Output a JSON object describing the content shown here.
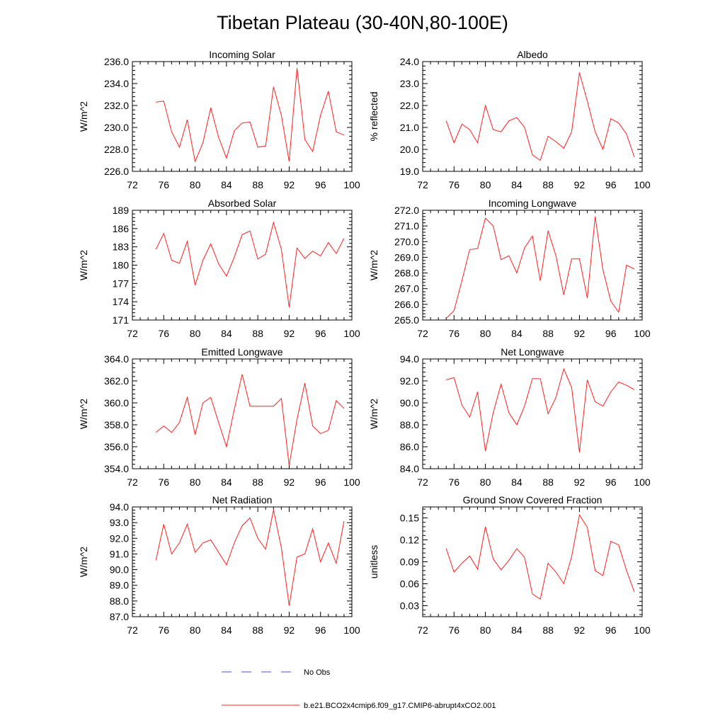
{
  "figure": {
    "title": "Tibetan Plateau (30-40N,80-100E)",
    "legend": [
      {
        "label": "No Obs",
        "color": "#4b4bcf",
        "style": "dashed"
      },
      {
        "label": "b.e21.BCO2x4cmip6.f09_g17.CMIP6-abrupt4xCO2.001",
        "color": "#ff2020",
        "style": "solid"
      }
    ]
  },
  "chart_data": [
    {
      "type": "line",
      "title": "Incoming Solar",
      "ylabel": "W/m^2",
      "xlabel": "",
      "xlim": [
        72,
        100
      ],
      "ylim": [
        226,
        236
      ],
      "x_ticks": [
        "72",
        "76",
        "80",
        "84",
        "88",
        "92",
        "96",
        "100"
      ],
      "y_ticks": [
        "226.0",
        "228.0",
        "230.0",
        "232.0",
        "234.0",
        "236.0"
      ],
      "series": [
        {
          "name": "b.e21.BCO2x4cmip6.f09_g17.CMIP6-abrupt4xCO2.001",
          "color": "#ff2020",
          "x": [
            75,
            76,
            77,
            78,
            79,
            80,
            81,
            82,
            83,
            84,
            85,
            86,
            87,
            88,
            89,
            90,
            91,
            92,
            93,
            94,
            95,
            96,
            97,
            98,
            99
          ],
          "values": [
            232.3,
            232.4,
            229.6,
            228.2,
            230.7,
            226.9,
            228.6,
            231.8,
            229.1,
            227.2,
            229.7,
            230.4,
            230.5,
            228.2,
            228.3,
            233.7,
            231.1,
            226.9,
            235.4,
            228.9,
            227.8,
            231.1,
            233.3,
            229.6,
            229.3
          ]
        }
      ]
    },
    {
      "type": "line",
      "title": "Albedo",
      "ylabel": "% reflected",
      "xlabel": "",
      "xlim": [
        72,
        100
      ],
      "ylim": [
        19,
        24
      ],
      "x_ticks": [
        "72",
        "76",
        "80",
        "84",
        "88",
        "92",
        "96",
        "100"
      ],
      "y_ticks": [
        "19.0",
        "20.0",
        "21.0",
        "22.0",
        "23.0",
        "24.0"
      ],
      "series": [
        {
          "name": "b.e21.BCO2x4cmip6.f09_g17.CMIP6-abrupt4xCO2.001",
          "color": "#ff2020",
          "x": [
            75,
            76,
            77,
            78,
            79,
            80,
            81,
            82,
            83,
            84,
            85,
            86,
            87,
            88,
            89,
            90,
            91,
            92,
            93,
            94,
            95,
            96,
            97,
            98,
            99
          ],
          "values": [
            21.3,
            20.3,
            21.15,
            20.9,
            20.3,
            22.0,
            20.9,
            20.8,
            21.3,
            21.45,
            21.0,
            19.75,
            19.5,
            20.6,
            20.35,
            20.05,
            20.8,
            23.5,
            22.2,
            20.8,
            20.0,
            21.4,
            21.2,
            20.7,
            19.65
          ]
        }
      ]
    },
    {
      "type": "line",
      "title": "Absorbed Solar",
      "ylabel": "W/m^2",
      "xlabel": "",
      "xlim": [
        72,
        100
      ],
      "ylim": [
        171,
        189
      ],
      "x_ticks": [
        "72",
        "76",
        "80",
        "84",
        "88",
        "92",
        "96",
        "100"
      ],
      "y_ticks": [
        "171",
        "174",
        "177",
        "180",
        "183",
        "186",
        "189"
      ],
      "series": [
        {
          "name": "b.e21.BCO2x4cmip6.f09_g17.CMIP6-abrupt4xCO2.001",
          "color": "#ff2020",
          "x": [
            75,
            76,
            77,
            78,
            79,
            80,
            81,
            82,
            83,
            84,
            85,
            86,
            87,
            88,
            89,
            90,
            91,
            92,
            93,
            94,
            95,
            96,
            97,
            98,
            99
          ],
          "values": [
            182.6,
            185.2,
            180.8,
            180.3,
            183.9,
            176.7,
            180.8,
            183.5,
            180.2,
            178.2,
            181.3,
            185.0,
            185.6,
            181.0,
            181.8,
            187.0,
            182.6,
            173.1,
            182.8,
            181.1,
            182.3,
            181.5,
            183.7,
            181.9,
            184.4
          ]
        }
      ]
    },
    {
      "type": "line",
      "title": "Incoming Longwave",
      "ylabel": "W/m^2",
      "xlabel": "",
      "xlim": [
        72,
        100
      ],
      "ylim": [
        265,
        272
      ],
      "x_ticks": [
        "72",
        "76",
        "80",
        "84",
        "88",
        "92",
        "96",
        "100"
      ],
      "y_ticks": [
        "265.0",
        "266.0",
        "267.0",
        "268.0",
        "269.0",
        "270.0",
        "271.0",
        "272.0"
      ],
      "series": [
        {
          "name": "b.e21.BCO2x4cmip6.f09_g17.CMIP6-abrupt4xCO2.001",
          "color": "#ff2020",
          "x": [
            75,
            76,
            77,
            78,
            79,
            80,
            81,
            82,
            83,
            84,
            85,
            86,
            87,
            88,
            89,
            90,
            91,
            92,
            93,
            94,
            95,
            96,
            97,
            98,
            99
          ],
          "values": [
            265.1,
            265.6,
            267.5,
            269.5,
            269.55,
            271.5,
            271.0,
            268.85,
            269.1,
            268.0,
            269.6,
            270.35,
            267.5,
            270.7,
            269.1,
            266.6,
            268.9,
            268.9,
            266.4,
            271.6,
            268.2,
            266.2,
            265.5,
            268.5,
            268.25
          ]
        }
      ]
    },
    {
      "type": "line",
      "title": "Emitted Longwave",
      "ylabel": "W/m^2",
      "xlabel": "",
      "xlim": [
        72,
        100
      ],
      "ylim": [
        354,
        364
      ],
      "x_ticks": [
        "72",
        "76",
        "80",
        "84",
        "88",
        "92",
        "96",
        "100"
      ],
      "y_ticks": [
        "354.0",
        "356.0",
        "358.0",
        "360.0",
        "362.0",
        "364.0"
      ],
      "series": [
        {
          "name": "b.e21.BCO2x4cmip6.f09_g17.CMIP6-abrupt4xCO2.001",
          "color": "#ff2020",
          "x": [
            75,
            76,
            77,
            78,
            79,
            80,
            81,
            82,
            83,
            84,
            85,
            86,
            87,
            88,
            89,
            90,
            91,
            92,
            93,
            94,
            95,
            96,
            97,
            98,
            99
          ],
          "values": [
            357.3,
            357.9,
            357.3,
            358.2,
            360.5,
            357.1,
            360.0,
            360.5,
            358.2,
            356.0,
            359.4,
            362.6,
            359.7,
            359.7,
            359.7,
            359.7,
            360.4,
            354.3,
            358.5,
            361.8,
            357.9,
            357.2,
            357.5,
            360.2,
            359.5
          ]
        }
      ]
    },
    {
      "type": "line",
      "title": "Net Longwave",
      "ylabel": "W/m^2",
      "xlabel": "",
      "xlim": [
        72,
        100
      ],
      "ylim": [
        84,
        94
      ],
      "x_ticks": [
        "72",
        "76",
        "80",
        "84",
        "88",
        "92",
        "96",
        "100"
      ],
      "y_ticks": [
        "84.0",
        "86.0",
        "88.0",
        "90.0",
        "92.0",
        "94.0"
      ],
      "series": [
        {
          "name": "b.e21.BCO2x4cmip6.f09_g17.CMIP6-abrupt4xCO2.001",
          "color": "#ff2020",
          "x": [
            75,
            76,
            77,
            78,
            79,
            80,
            81,
            82,
            83,
            84,
            85,
            86,
            87,
            88,
            89,
            90,
            91,
            92,
            93,
            94,
            95,
            96,
            97,
            98,
            99
          ],
          "values": [
            92.1,
            92.3,
            89.8,
            88.7,
            91.0,
            85.6,
            89.1,
            91.7,
            89.1,
            88.0,
            89.7,
            92.2,
            92.2,
            89.0,
            90.5,
            93.1,
            91.4,
            85.5,
            92.1,
            90.1,
            89.7,
            91.0,
            91.9,
            91.6,
            91.2
          ]
        }
      ]
    },
    {
      "type": "line",
      "title": "Net Radiation",
      "ylabel": "W/m^2",
      "xlabel": "",
      "xlim": [
        72,
        100
      ],
      "ylim": [
        87,
        94
      ],
      "x_ticks": [
        "72",
        "76",
        "80",
        "84",
        "88",
        "92",
        "96",
        "100"
      ],
      "y_ticks": [
        "87.0",
        "88.0",
        "89.0",
        "90.0",
        "91.0",
        "92.0",
        "93.0",
        "94.0"
      ],
      "series": [
        {
          "name": "b.e21.BCO2x4cmip6.f09_g17.CMIP6-abrupt4xCO2.001",
          "color": "#ff2020",
          "x": [
            75,
            76,
            77,
            78,
            79,
            80,
            81,
            82,
            83,
            84,
            85,
            86,
            87,
            88,
            89,
            90,
            91,
            92,
            93,
            94,
            95,
            96,
            97,
            98,
            99
          ],
          "values": [
            90.6,
            92.9,
            91.0,
            91.7,
            92.9,
            91.1,
            91.7,
            91.9,
            91.1,
            90.3,
            91.7,
            92.8,
            93.3,
            92.0,
            91.3,
            93.8,
            91.4,
            87.7,
            90.8,
            91.0,
            92.6,
            90.5,
            91.7,
            90.4,
            93.1
          ]
        }
      ]
    },
    {
      "type": "line",
      "title": "Ground Snow Covered Fraction",
      "ylabel": "unitless",
      "xlabel": "",
      "xlim": [
        72,
        100
      ],
      "ylim": [
        0.015,
        0.165
      ],
      "x_ticks": [
        "72",
        "76",
        "80",
        "84",
        "88",
        "92",
        "96",
        "100"
      ],
      "y_ticks": [
        "0.03",
        "0.06",
        "0.09",
        "0.12",
        "0.15"
      ],
      "y_tick_values": [
        0.03,
        0.06,
        0.09,
        0.12,
        0.15
      ],
      "series": [
        {
          "name": "b.e21.BCO2x4cmip6.f09_g17.CMIP6-abrupt4xCO2.001",
          "color": "#ff2020",
          "x": [
            75,
            76,
            77,
            78,
            79,
            80,
            81,
            82,
            83,
            84,
            85,
            86,
            87,
            88,
            89,
            90,
            91,
            92,
            93,
            94,
            95,
            96,
            97,
            98,
            99
          ],
          "values": [
            0.108,
            0.076,
            0.088,
            0.098,
            0.08,
            0.138,
            0.094,
            0.079,
            0.092,
            0.108,
            0.096,
            0.046,
            0.039,
            0.088,
            0.076,
            0.06,
            0.097,
            0.154,
            0.137,
            0.078,
            0.071,
            0.118,
            0.113,
            0.078,
            0.049
          ]
        }
      ]
    }
  ]
}
